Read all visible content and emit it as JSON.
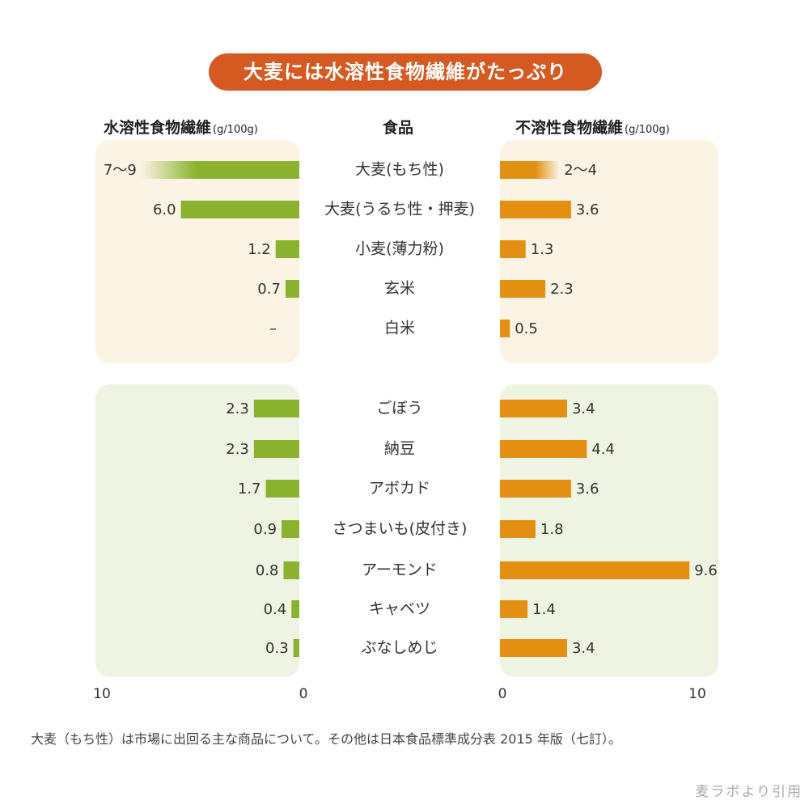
{
  "title": "大麦には水溶性食物繊維がたっぷり",
  "headers": {
    "left": "水溶性食物繊維",
    "left_unit": "(g/100g)",
    "center": "食品",
    "right": "不溶性食物繊維",
    "right_unit": "(g/100g)"
  },
  "colors": {
    "title_bg": "#d45a21",
    "soluble_bar": "#8bb22e",
    "insoluble_bar": "#e38f12",
    "panel_grain": "#fbf3e3",
    "panel_veg": "#eef3e2"
  },
  "chart_data": {
    "type": "bar",
    "title": "大麦には水溶性食物繊維がたっぷり",
    "xlim": [
      0,
      10
    ],
    "axis_ticks_left": [
      "10",
      "0"
    ],
    "axis_ticks_right": [
      "0",
      "10"
    ],
    "groups": [
      {
        "name": "grain",
        "categories": [
          "大麦(もち性)",
          "大麦(うるち性・押麦)",
          "小麦(薄力粉)",
          "玄米",
          "白米"
        ],
        "soluble": {
          "values": [
            8,
            6.0,
            1.2,
            0.7,
            0
          ],
          "labels": [
            "7〜9",
            "6.0",
            "1.2",
            "0.7",
            "–"
          ],
          "range_flags": [
            true,
            false,
            false,
            false,
            false
          ]
        },
        "insoluble": {
          "values": [
            3,
            3.6,
            1.3,
            2.3,
            0.5
          ],
          "labels": [
            "2〜4",
            "3.6",
            "1.3",
            "2.3",
            "0.5"
          ],
          "range_flags": [
            true,
            false,
            false,
            false,
            false
          ]
        }
      },
      {
        "name": "vegetable",
        "categories": [
          "ごぼう",
          "納豆",
          "アボカド",
          "さつまいも(皮付き)",
          "アーモンド",
          "キャベツ",
          "ぶなしめじ"
        ],
        "soluble": {
          "values": [
            2.3,
            2.3,
            1.7,
            0.9,
            0.8,
            0.4,
            0.3
          ],
          "labels": [
            "2.3",
            "2.3",
            "1.7",
            "0.9",
            "0.8",
            "0.4",
            "0.3"
          ],
          "range_flags": [
            false,
            false,
            false,
            false,
            false,
            false,
            false
          ]
        },
        "insoluble": {
          "values": [
            3.4,
            4.4,
            3.6,
            1.8,
            9.6,
            1.4,
            3.4
          ],
          "labels": [
            "3.4",
            "4.4",
            "3.6",
            "1.8",
            "9.6",
            "1.4",
            "3.4"
          ],
          "range_flags": [
            false,
            false,
            false,
            false,
            false,
            false,
            false
          ]
        }
      }
    ]
  },
  "footnote": "大麦（もち性）は市場に出回る主な商品について。その他は日本食品標準成分表 2015 年版（七訂）。",
  "source": "麦ラボより引用"
}
